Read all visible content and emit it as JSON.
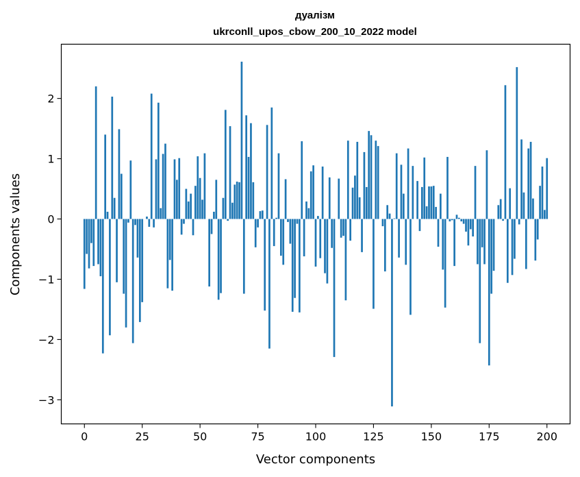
{
  "chart_data": {
    "type": "bar",
    "title": "дуалізм",
    "subtitle": "ukrconll_upos_cbow_200_10_2022 model",
    "xlabel": "Vector components",
    "ylabel": "Components values",
    "xlim": [
      -10,
      210
    ],
    "ylim": [
      -3.4,
      2.9
    ],
    "xticks": [
      0,
      25,
      50,
      75,
      100,
      125,
      150,
      175,
      200
    ],
    "yticks": [
      -3,
      -2,
      -1,
      0,
      1,
      2
    ],
    "grid": false,
    "color": "#1f77b4",
    "x_start": 0,
    "values": [
      -1.16,
      -0.58,
      -0.82,
      -0.4,
      -0.78,
      2.2,
      -0.75,
      -0.95,
      -2.23,
      1.4,
      0.12,
      -1.93,
      2.03,
      0.35,
      -1.05,
      1.49,
      0.75,
      -1.24,
      -1.8,
      -0.06,
      0.97,
      -2.06,
      -0.1,
      -0.64,
      -1.71,
      -1.38,
      0.0,
      0.04,
      -0.13,
      2.08,
      -0.14,
      0.99,
      1.93,
      0.18,
      1.08,
      1.25,
      -1.15,
      -0.68,
      -1.19,
      0.99,
      0.65,
      1.01,
      -0.26,
      -0.08,
      0.5,
      0.29,
      0.42,
      -0.27,
      0.55,
      1.04,
      0.68,
      0.32,
      1.09,
      0.0,
      -1.12,
      -0.25,
      0.12,
      0.65,
      -1.34,
      -1.23,
      0.35,
      1.81,
      -0.03,
      1.54,
      0.27,
      0.57,
      0.62,
      0.61,
      2.61,
      -1.24,
      1.72,
      1.03,
      1.59,
      0.61,
      -0.47,
      -0.14,
      0.13,
      0.14,
      -1.52,
      1.56,
      -2.15,
      1.85,
      -0.45,
      0.02,
      1.09,
      -0.61,
      -0.76,
      0.66,
      -0.05,
      -0.41,
      -1.54,
      -1.31,
      -0.08,
      -1.55,
      1.29,
      -0.62,
      0.29,
      0.18,
      0.79,
      0.89,
      -0.79,
      0.05,
      -0.65,
      0.87,
      -0.9,
      -1.07,
      0.69,
      -0.48,
      -2.29,
      0.0,
      0.67,
      -0.31,
      -0.28,
      -1.35,
      1.3,
      -0.36,
      0.52,
      0.72,
      1.28,
      0.36,
      -0.55,
      1.11,
      0.53,
      1.46,
      1.39,
      -1.49,
      1.3,
      1.21,
      0.0,
      -0.12,
      -0.87,
      0.23,
      0.09,
      -3.11,
      0.01,
      1.09,
      -0.64,
      0.9,
      0.42,
      -0.76,
      1.17,
      -1.59,
      0.88,
      0.0,
      0.63,
      -0.2,
      0.53,
      1.02,
      0.21,
      0.54,
      0.54,
      0.55,
      0.2,
      -0.46,
      0.42,
      -0.84,
      -1.47,
      1.03,
      -0.04,
      -0.02,
      -0.78,
      0.07,
      0.02,
      -0.04,
      -0.08,
      -0.21,
      -0.44,
      -0.17,
      -0.29,
      0.88,
      -0.75,
      -2.06,
      -0.47,
      -0.75,
      1.14,
      -2.43,
      -1.24,
      -0.86,
      0.0,
      0.23,
      0.33,
      -0.03,
      2.22,
      -1.06,
      0.51,
      -0.93,
      -0.66,
      2.52,
      -0.09,
      1.32,
      0.44,
      -0.83,
      1.17,
      1.28,
      0.34,
      -0.69,
      -0.34,
      0.55,
      0.87,
      0.15,
      1.01
    ]
  }
}
